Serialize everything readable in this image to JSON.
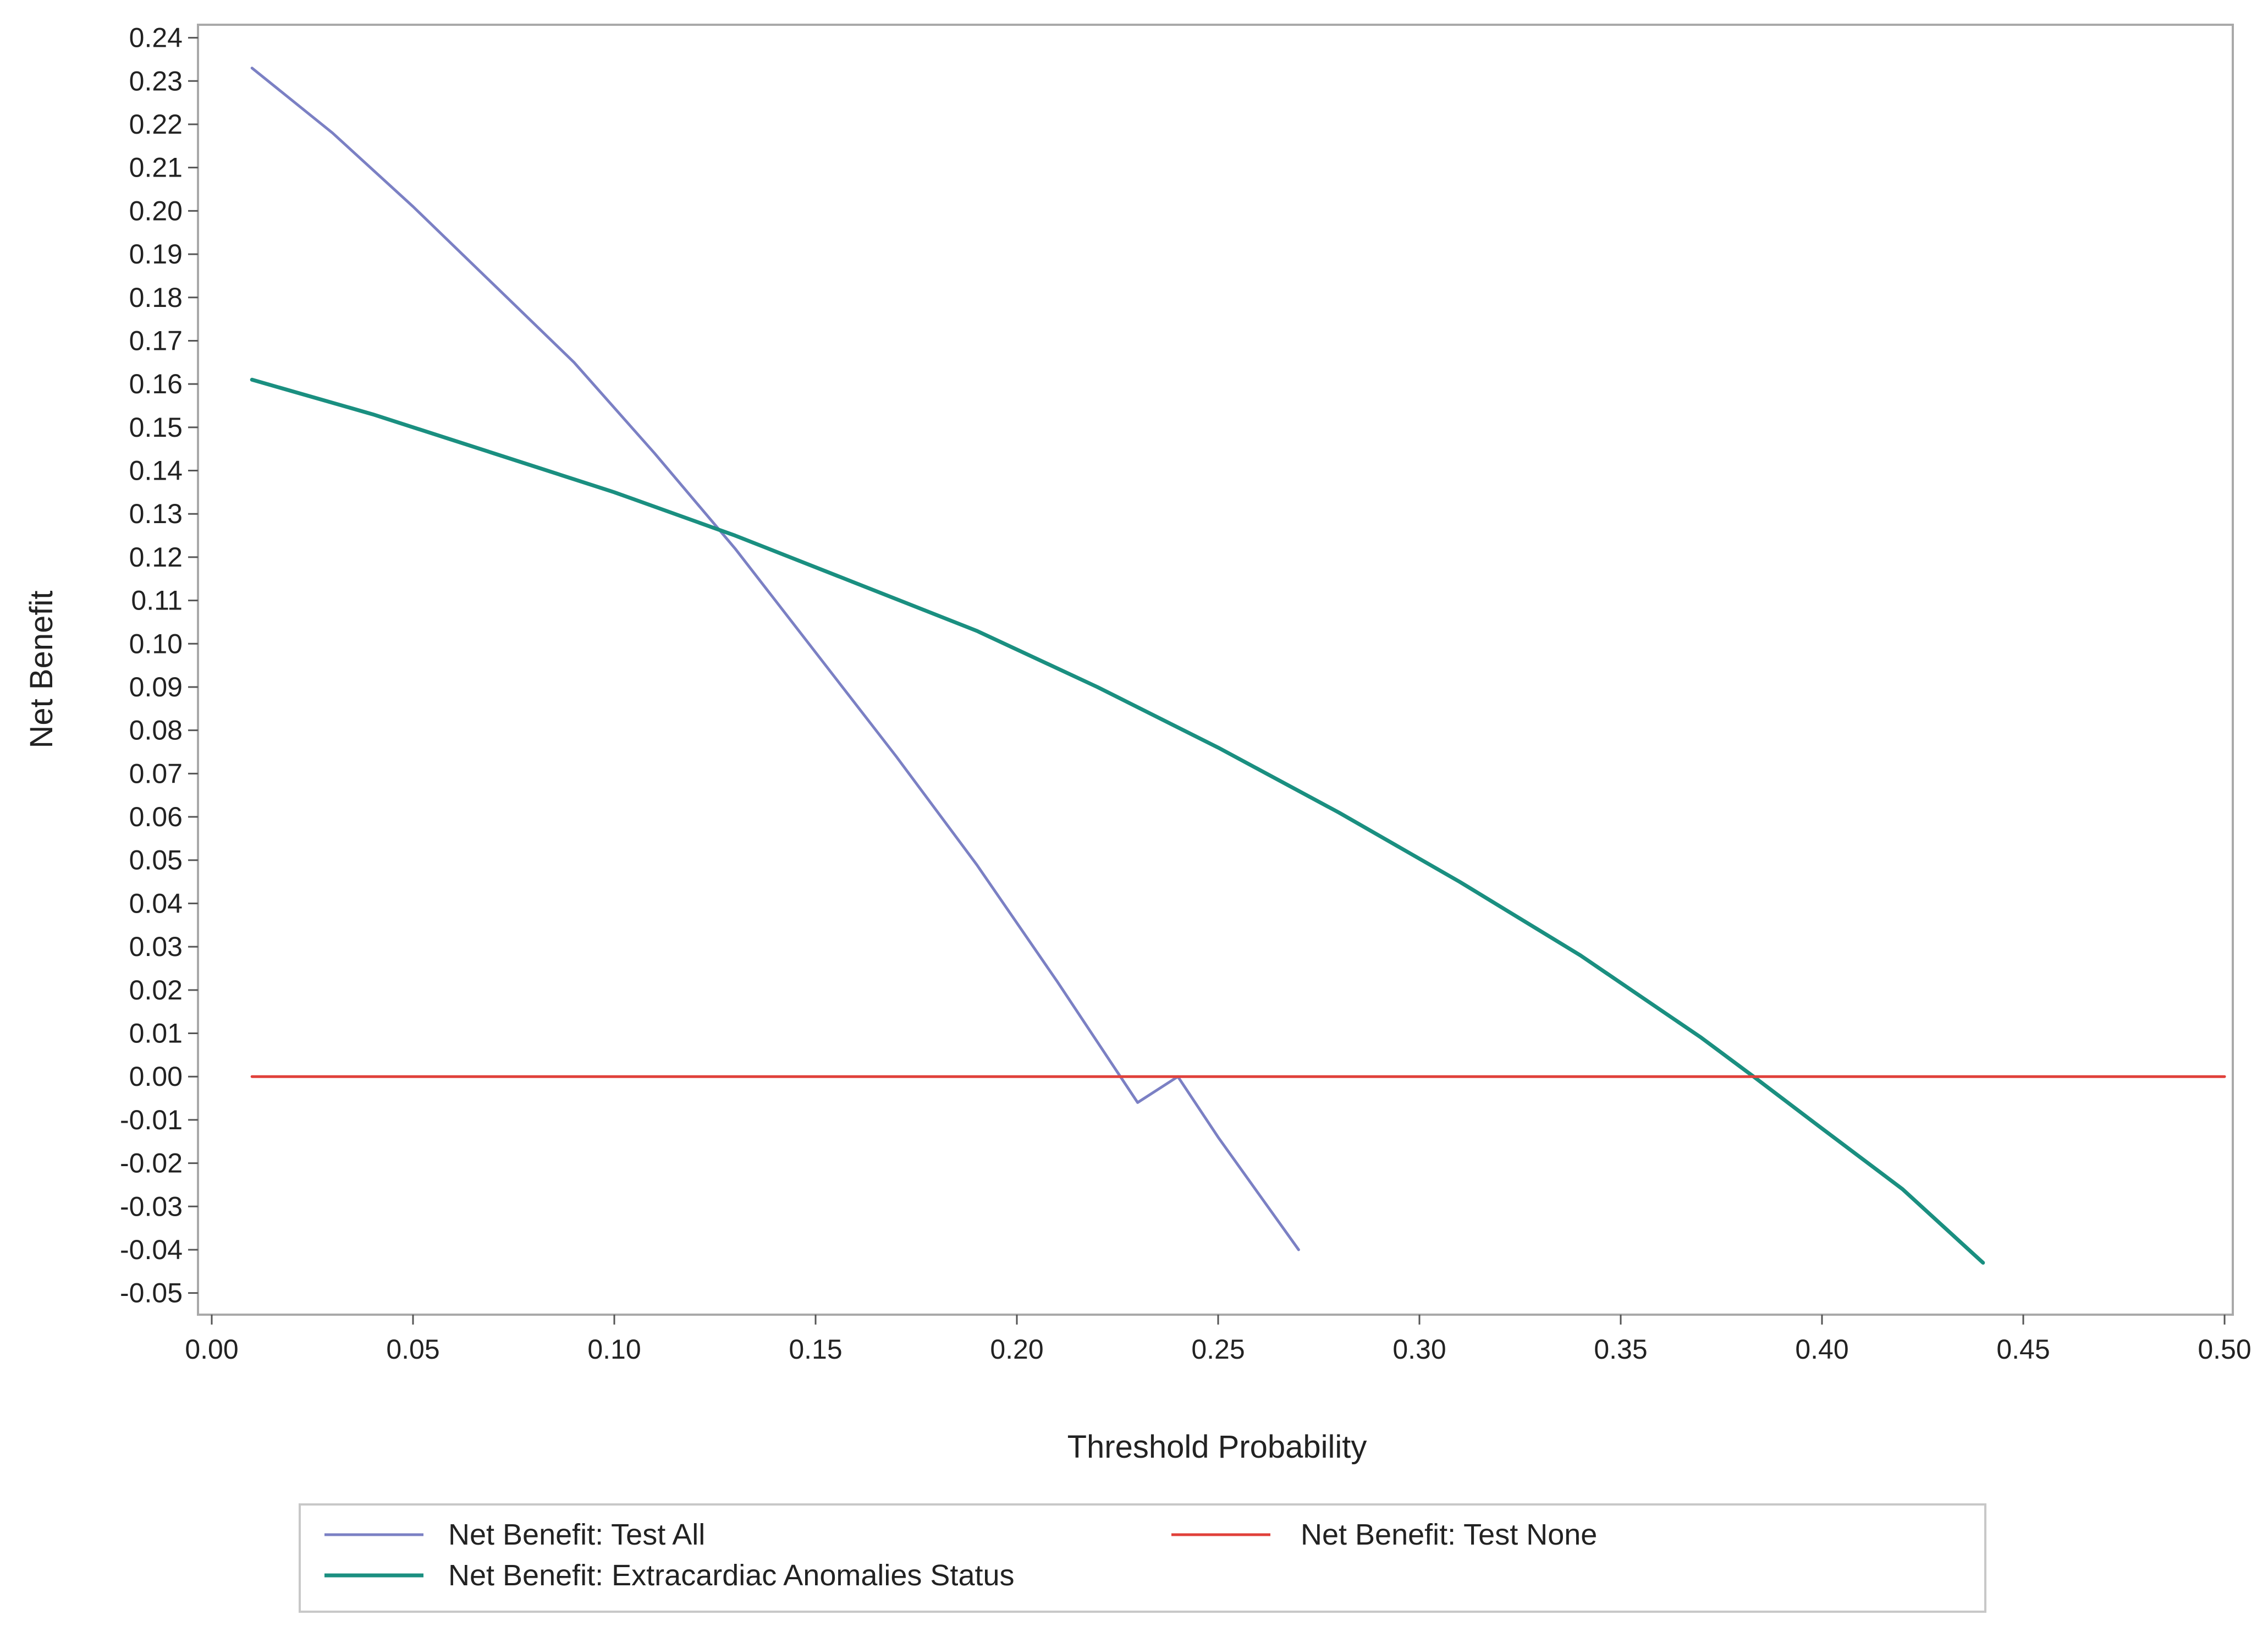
{
  "chart_data": {
    "type": "line",
    "title": "",
    "xlabel": "Threshold Probability",
    "ylabel": "Net Benefit",
    "xlim": [
      0.0,
      0.5
    ],
    "ylim": [
      -0.055,
      0.243
    ],
    "x_ticks": [
      "0.00",
      "0.05",
      "0.10",
      "0.15",
      "0.20",
      "0.25",
      "0.30",
      "0.35",
      "0.40",
      "0.45",
      "0.50"
    ],
    "y_ticks": [
      "0.24",
      "0.23",
      "0.22",
      "0.21",
      "0.20",
      "0.19",
      "0.18",
      "0.17",
      "0.16",
      "0.15",
      "0.14",
      "0.13",
      "0.12",
      "0.11",
      "0.10",
      "0.09",
      "0.08",
      "0.07",
      "0.06",
      "0.05",
      "0.04",
      "0.03",
      "0.02",
      "0.01",
      "0.00",
      "-0.01",
      "-0.02",
      "-0.03",
      "-0.04",
      "-0.05"
    ],
    "grid": false,
    "legend_position": "bottom",
    "series": [
      {
        "name": "Net Benefit: Test All",
        "color": "#7b80c4",
        "x": [
          0.01,
          0.03,
          0.05,
          0.07,
          0.09,
          0.11,
          0.13,
          0.15,
          0.17,
          0.19,
          0.21,
          0.23,
          0.24,
          0.25,
          0.27
        ],
        "y": [
          0.233,
          0.218,
          0.201,
          0.183,
          0.165,
          0.144,
          0.122,
          0.098,
          0.074,
          0.049,
          0.022,
          -0.006,
          -0.0,
          -0.014,
          -0.04
        ]
      },
      {
        "name": "Net Benefit: Extracardiac Anomalies Status",
        "color": "#1a8f80",
        "x": [
          0.01,
          0.04,
          0.07,
          0.1,
          0.13,
          0.16,
          0.19,
          0.22,
          0.25,
          0.28,
          0.31,
          0.34,
          0.37,
          0.383,
          0.4,
          0.42,
          0.44
        ],
        "y": [
          0.161,
          0.153,
          0.144,
          0.135,
          0.125,
          0.114,
          0.103,
          0.09,
          0.076,
          0.061,
          0.045,
          0.028,
          0.009,
          0.0,
          -0.012,
          -0.026,
          -0.043
        ]
      },
      {
        "name": "Net Benefit: Test None",
        "color": "#e0403a",
        "x": [
          0.01,
          0.5
        ],
        "y": [
          0.0,
          0.0
        ]
      }
    ]
  }
}
